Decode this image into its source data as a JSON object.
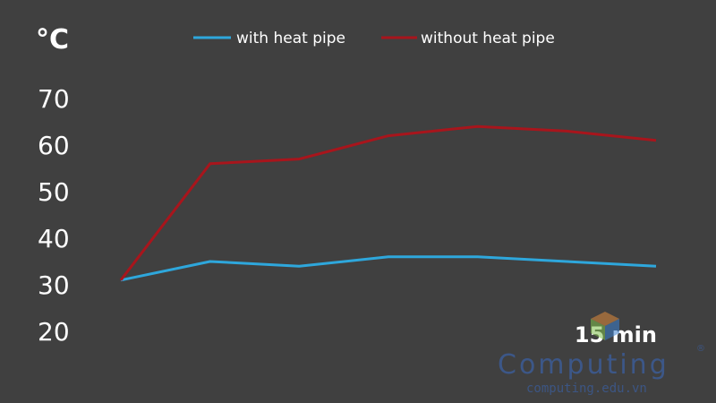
{
  "chart_data": {
    "type": "line",
    "unit_label": "°C",
    "x_end_label": "15 min",
    "x": [
      0,
      1,
      2,
      3,
      4,
      5,
      6
    ],
    "ylim": [
      20,
      70
    ],
    "yticks": [
      "70",
      "60",
      "50",
      "40",
      "30",
      "20"
    ],
    "ytick_values": [
      70,
      60,
      50,
      40,
      30,
      20
    ],
    "grid": false,
    "legend_position": "top-center",
    "series": [
      {
        "name": "with heat pipe",
        "color": "#2ea7dc",
        "values": [
          31,
          35,
          34,
          36,
          36,
          35,
          34
        ]
      },
      {
        "name": "without heat pipe",
        "color": "#a8151c",
        "values": [
          31,
          56,
          57,
          62,
          64,
          63,
          61
        ]
      }
    ]
  },
  "watermark": {
    "brand": "Computing",
    "url": "computing.edu.vn",
    "registered": "®"
  }
}
